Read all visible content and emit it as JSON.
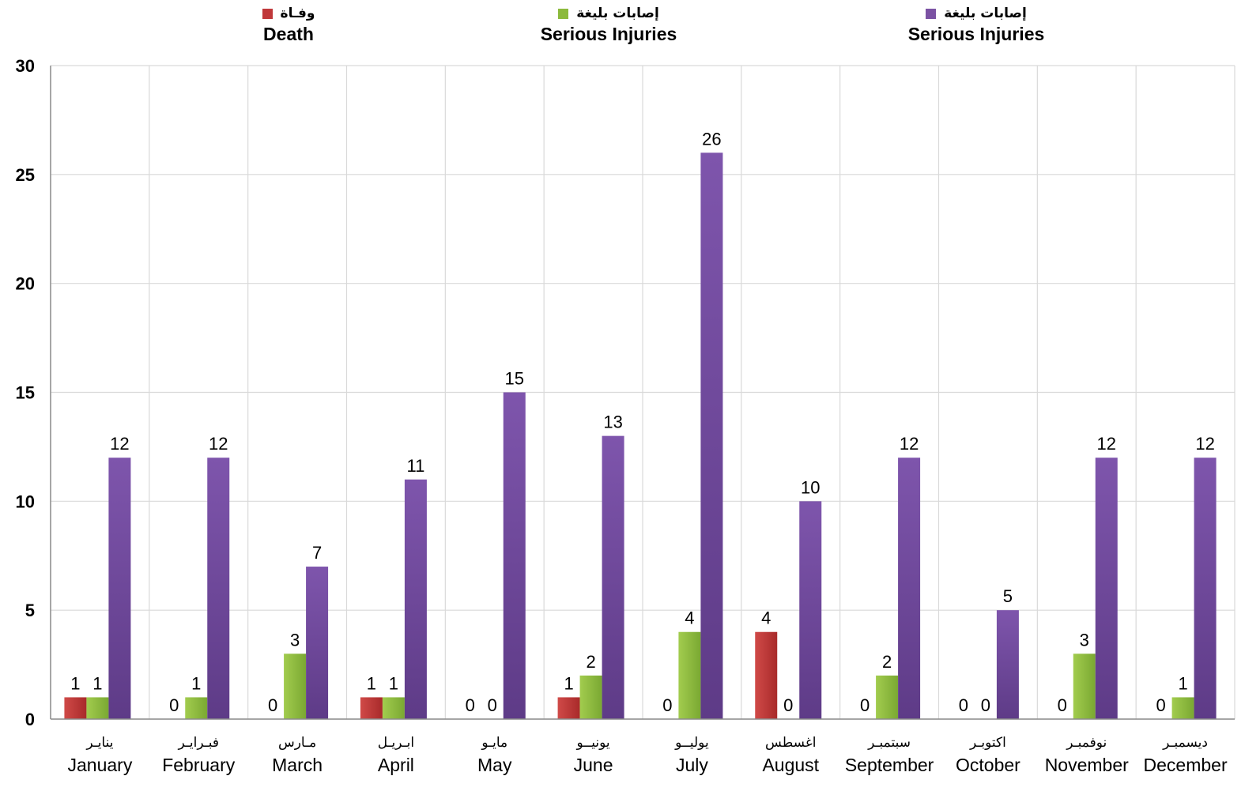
{
  "legend": [
    {
      "ar": "وفـاة",
      "en": "Death",
      "color": "#c0383a"
    },
    {
      "ar": "إصابات بليغة",
      "en": "Serious Injuries",
      "color": "#8cba3c"
    },
    {
      "ar": "إصابات بليغة",
      "en": "Serious Injuries",
      "color": "#7b52a3"
    }
  ],
  "chart_data": {
    "type": "bar",
    "title": "",
    "xlabel": "",
    "ylabel": "",
    "ylim": [
      0,
      30
    ],
    "yticks": [
      "0",
      "5",
      "10",
      "15",
      "20",
      "25",
      "30"
    ],
    "grid": true,
    "legend_position": "top",
    "categories": [
      "January",
      "February",
      "March",
      "April",
      "May",
      "June",
      "July",
      "August",
      "September",
      "October",
      "November",
      "December"
    ],
    "categories_ar": [
      "ينايـر",
      "فبـرايـر",
      "مـارس",
      "ابـريـل",
      "مايـو",
      "يونيــو",
      "يوليــو",
      "اغسطس",
      "سبتمبـر",
      "اكتوبـر",
      "نوفمبـر",
      "ديسمبـر"
    ],
    "series": [
      {
        "name": "Death",
        "color": "#c0383a",
        "values": [
          1,
          0,
          0,
          1,
          0,
          1,
          0,
          4,
          0,
          0,
          0,
          0
        ]
      },
      {
        "name": "Serious Injuries",
        "color": "#8cba3c",
        "values": [
          1,
          1,
          3,
          1,
          0,
          2,
          4,
          0,
          2,
          0,
          3,
          1
        ]
      },
      {
        "name": "Serious Injuries",
        "color": "#7b52a3",
        "values": [
          12,
          12,
          7,
          11,
          15,
          13,
          26,
          10,
          12,
          5,
          12,
          12
        ]
      }
    ]
  }
}
